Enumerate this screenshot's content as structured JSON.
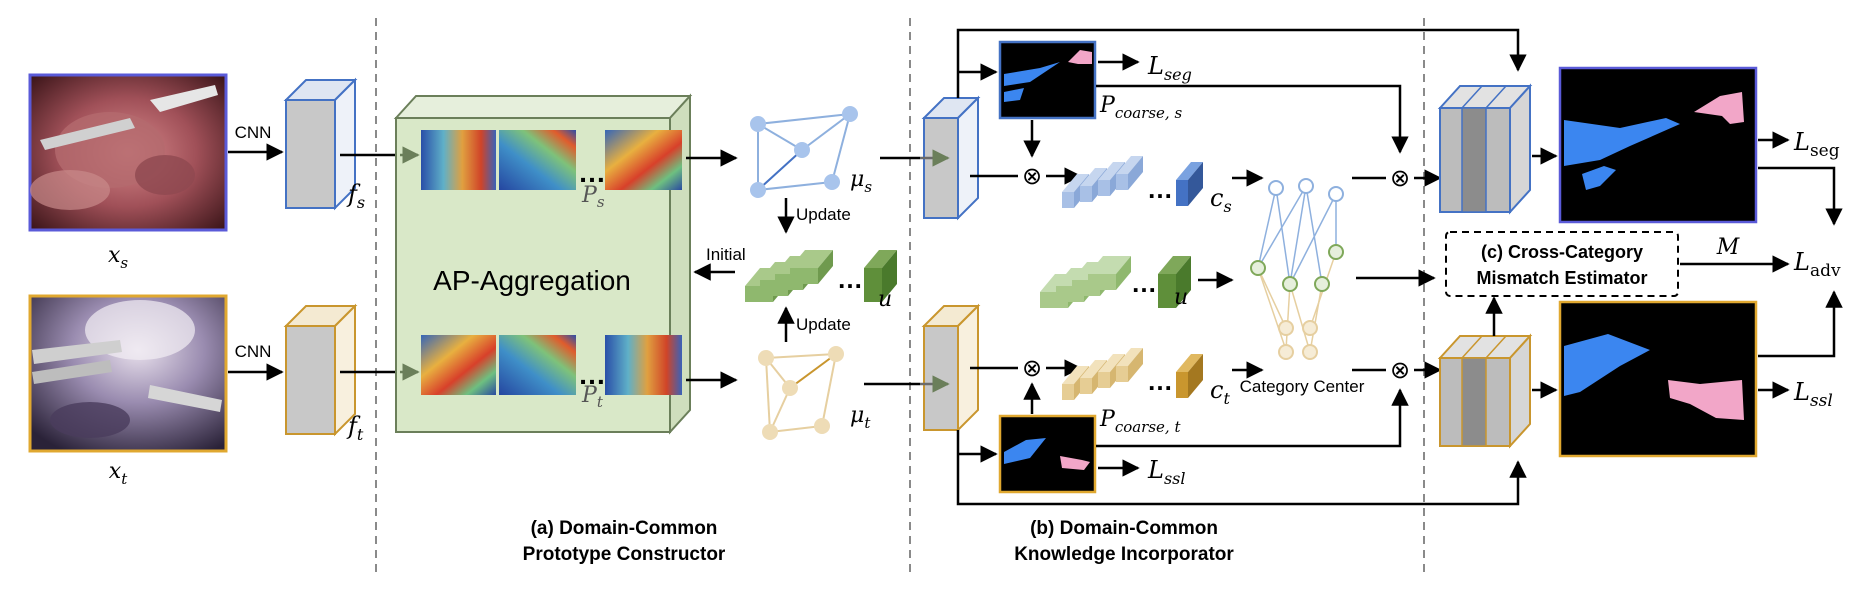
{
  "inputs": {
    "source_label": "x",
    "source_sub": "s",
    "target_label": "x",
    "target_sub": "t",
    "cnn_label": "CNN"
  },
  "features": {
    "source": "f",
    "source_sub": "s",
    "target": "f",
    "target_sub": "t"
  },
  "aggregation": {
    "title": "AP-Aggregation",
    "ps": "P",
    "ps_sub": "s",
    "pt": "P",
    "pt_sub": "t",
    "ellipsis": "…"
  },
  "graph": {
    "mu_s": "μ",
    "mu_s_sub": "s",
    "mu_t": "μ",
    "mu_t_sub": "t",
    "update_top": "Update",
    "update_bottom": "Update",
    "initial": "Initial",
    "u": "u"
  },
  "knowledge": {
    "l_seg": "L",
    "l_seg_sub": "seg",
    "p_coarse_s": "P",
    "p_coarse_s_sub": "coarse, s",
    "p_coarse_t": "P",
    "p_coarse_t_sub": "coarse, t",
    "l_ssl": "L",
    "l_ssl_sub": "ssl",
    "c_s": "c",
    "c_s_sub": "s",
    "c_t": "c",
    "c_t_sub": "t",
    "u": "u",
    "category_center": "Category Center",
    "otimes": "⊗"
  },
  "estimator": {
    "line1": "(c) Cross-Category",
    "line2": "Mismatch Estimator",
    "m": "M",
    "l_seg_out": "L",
    "l_seg_out_sub": "seg",
    "l_adv": "L",
    "l_adv_sub": "adv",
    "l_ssl_out": "L",
    "l_ssl_out_sub": "ssl"
  },
  "captions": {
    "a_line1": "(a) Domain-Common",
    "a_line2": "Prototype Constructor",
    "b_line1": "(b) Domain-Common",
    "b_line2": "Knowledge Incorporator"
  },
  "colors": {
    "source_blue": "#4472c4",
    "target_gold": "#d6a02e",
    "green_box": "#d9e8c8",
    "green_dark": "#5f8f3a",
    "green_light": "#a9c98a",
    "seg_blue": "#3b86f0",
    "seg_pink": "#f2a6c8",
    "feat_gray": "#c4c4c4"
  }
}
